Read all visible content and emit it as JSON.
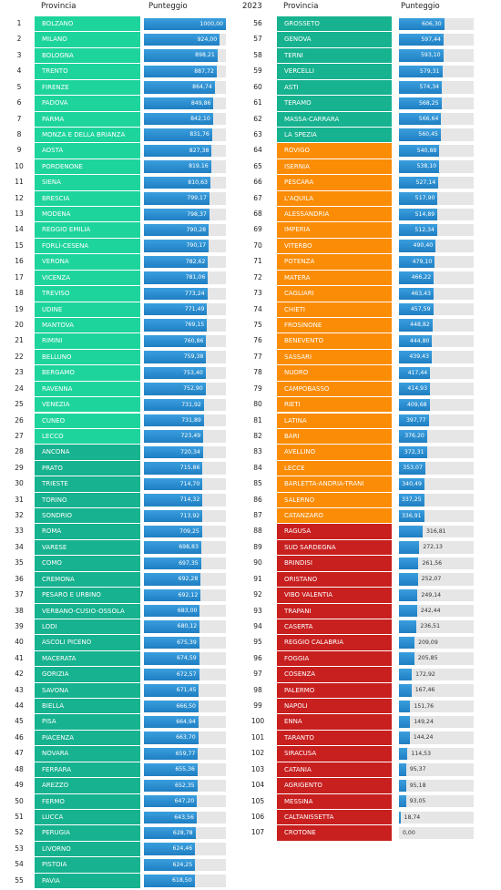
{
  "header": {
    "left_province": "Provincia",
    "left_score": "Punteggio",
    "year": "2023",
    "right_province": "Provincia",
    "right_score": "Punteggio"
  },
  "columns": [
    {
      "sections": [
        {
          "color": "#1ed49d",
          "label_position": "inside",
          "rows": [
            [
              "1",
              "BOLZANO",
              1000.0,
              "1000,00"
            ],
            [
              "2",
              "MILANO",
              924.0,
              "924,00"
            ],
            [
              "3",
              "BOLOGNA",
              898.21,
              "898,21"
            ],
            [
              "4",
              "TRENTO",
              887.72,
              "887,72"
            ],
            [
              "5",
              "FIRENZE",
              864.74,
              "864,74"
            ],
            [
              "6",
              "PADOVA",
              849.86,
              "849,86"
            ],
            [
              "7",
              "PARMA",
              842.1,
              "842,10"
            ],
            [
              "8",
              "MONZA E DELLA BRIANZA",
              831.76,
              "831,76"
            ],
            [
              "9",
              "AOSTA",
              827.38,
              "827,38"
            ],
            [
              "10",
              "PORDENONE",
              819.16,
              "819,16"
            ],
            [
              "11",
              "SIENA",
              810.63,
              "810,63"
            ],
            [
              "12",
              "BRESCIA",
              799.17,
              "799,17"
            ],
            [
              "13",
              "MODENA",
              798.37,
              "798,37"
            ],
            [
              "14",
              "REGGIO EMILIA",
              790.28,
              "790,28"
            ],
            [
              "15",
              "FORLÌ-CESENA",
              790.17,
              "790,17"
            ],
            [
              "16",
              "VERONA",
              782.62,
              "782,62"
            ],
            [
              "17",
              "VICENZA",
              781.06,
              "781,06"
            ],
            [
              "18",
              "TREVISO",
              773.24,
              "773,24"
            ],
            [
              "19",
              "UDINE",
              771.49,
              "771,49"
            ],
            [
              "20",
              "MANTOVA",
              769.15,
              "769,15"
            ],
            [
              "21",
              "RIMINI",
              760.86,
              "760,86"
            ],
            [
              "22",
              "BELLUNO",
              759.38,
              "759,38"
            ],
            [
              "23",
              "BERGAMO",
              753.4,
              "753,40"
            ],
            [
              "24",
              "RAVENNA",
              752.9,
              "752,90"
            ],
            [
              "25",
              "VENEZIA",
              731.92,
              "731,92"
            ],
            [
              "26",
              "CUNEO",
              731.89,
              "731,89"
            ],
            [
              "27",
              "LECCO",
              723.49,
              "723,49"
            ]
          ]
        },
        {
          "color": "#17b28f",
          "label_position": "inside",
          "rows": [
            [
              "28",
              "ANCONA",
              720.34,
              "720,34"
            ],
            [
              "29",
              "PRATO",
              715.86,
              "715,86"
            ],
            [
              "30",
              "TRIESTE",
              714.7,
              "714,70"
            ],
            [
              "31",
              "TORINO",
              714.32,
              "714,32"
            ],
            [
              "32",
              "SONDRIO",
              713.92,
              "713,92"
            ],
            [
              "33",
              "ROMA",
              709.25,
              "709,25"
            ],
            [
              "34",
              "VARESE",
              698.83,
              "698,83"
            ],
            [
              "35",
              "COMO",
              697.35,
              "697,35"
            ],
            [
              "36",
              "CREMONA",
              692.28,
              "692,28"
            ],
            [
              "37",
              "PESARO E URBINO",
              692.12,
              "692,12"
            ],
            [
              "38",
              "VERBANO-CUSIO-OSSOLA",
              683.0,
              "683,00"
            ],
            [
              "39",
              "LODI",
              680.12,
              "680,12"
            ],
            [
              "40",
              "ASCOLI PICENO",
              675.39,
              "675,39"
            ],
            [
              "41",
              "MACERATA",
              674.59,
              "674,59"
            ],
            [
              "42",
              "GORIZIA",
              672.57,
              "672,57"
            ],
            [
              "43",
              "SAVONA",
              671.45,
              "671,45"
            ],
            [
              "44",
              "BIELLA",
              666.5,
              "666,50"
            ],
            [
              "45",
              "PISA",
              664.94,
              "664,94"
            ],
            [
              "46",
              "PIACENZA",
              663.7,
              "663,70"
            ],
            [
              "47",
              "NOVARA",
              659.77,
              "659,77"
            ],
            [
              "48",
              "FERRARA",
              655.36,
              "655,36"
            ],
            [
              "49",
              "AREZZO",
              652.35,
              "652,35"
            ],
            [
              "50",
              "FERMO",
              647.2,
              "647,20"
            ],
            [
              "51",
              "LUCCA",
              643.56,
              "643,56"
            ],
            [
              "52",
              "PERUGIA",
              628.78,
              "628,78"
            ],
            [
              "53",
              "LIVORNO",
              624.46,
              "624,46"
            ],
            [
              "54",
              "PISTOIA",
              624.25,
              "624,25"
            ],
            [
              "55",
              "PAVIA",
              618.5,
              "618,50"
            ]
          ]
        }
      ]
    },
    {
      "sections": [
        {
          "color": "#17b28f",
          "label_position": "inside",
          "rows": [
            [
              "56",
              "GROSSETO",
              606.3,
              "606,30"
            ],
            [
              "57",
              "GENOVA",
              597.44,
              "597,44"
            ],
            [
              "58",
              "TERNI",
              593.1,
              "593,10"
            ],
            [
              "59",
              "VERCELLI",
              579.31,
              "579,31"
            ],
            [
              "60",
              "ASTI",
              574.34,
              "574,34"
            ],
            [
              "61",
              "TERAMO",
              568.25,
              "568,25"
            ],
            [
              "62",
              "MASSA-CARRARA",
              566.64,
              "566,64"
            ],
            [
              "63",
              "LA SPEZIA",
              560.45,
              "560,45"
            ]
          ]
        },
        {
          "color": "#fb8c06",
          "label_position": "inside",
          "rows": [
            [
              "64",
              "ROVIGO",
              540.88,
              "540,88"
            ],
            [
              "65",
              "ISERNIA",
              538.1,
              "538,10"
            ],
            [
              "66",
              "PESCARA",
              527.14,
              "527,14"
            ],
            [
              "67",
              "L'AQUILA",
              517.9,
              "517,90"
            ],
            [
              "68",
              "ALESSANDRIA",
              514.89,
              "514,89"
            ],
            [
              "69",
              "IMPERIA",
              512.34,
              "512,34"
            ],
            [
              "70",
              "VITERBO",
              490.4,
              "490,40"
            ],
            [
              "71",
              "POTENZA",
              479.1,
              "479,10"
            ],
            [
              "72",
              "MATERA",
              466.22,
              "466,22"
            ],
            [
              "73",
              "CAGLIARI",
              463.43,
              "463,43"
            ],
            [
              "74",
              "CHIETI",
              457.59,
              "457,59"
            ],
            [
              "75",
              "FROSINONE",
              448.82,
              "448,82"
            ],
            [
              "76",
              "BENEVENTO",
              444.8,
              "444,80"
            ],
            [
              "77",
              "SASSARI",
              439.43,
              "439,43"
            ],
            [
              "78",
              "NUORO",
              417.44,
              "417,44"
            ],
            [
              "79",
              "CAMPOBASSO",
              414.93,
              "414,93"
            ],
            [
              "80",
              "RIETI",
              409.68,
              "409,68"
            ],
            [
              "81",
              "LATINA",
              397.77,
              "397,77"
            ],
            [
              "82",
              "BARI",
              376.2,
              "376,20"
            ],
            [
              "83",
              "AVELLINO",
              372.31,
              "372,31"
            ],
            [
              "84",
              "LECCE",
              353.07,
              "353,07"
            ],
            [
              "85",
              "BARLETTA-ANDRIA-TRANI",
              340.49,
              "340,49"
            ],
            [
              "86",
              "SALERNO",
              337.25,
              "337,25"
            ],
            [
              "87",
              "CATANZARO",
              336.91,
              "336,91"
            ]
          ]
        },
        {
          "color": "#c81f1f",
          "label_position": "outside",
          "rows": [
            [
              "88",
              "RAGUSA",
              316.81,
              "316,81"
            ],
            [
              "89",
              "SUD SARDEGNA",
              272.13,
              "272,13"
            ],
            [
              "90",
              "BRINDISI",
              261.56,
              "261,56"
            ],
            [
              "91",
              "ORISTANO",
              252.07,
              "252,07"
            ],
            [
              "92",
              "VIBO VALENTIA",
              249.14,
              "249,14"
            ],
            [
              "93",
              "TRAPANI",
              242.44,
              "242,44"
            ],
            [
              "94",
              "CASERTA",
              236.51,
              "236,51"
            ],
            [
              "95",
              "REGGIO CALABRIA",
              209.09,
              "209,09"
            ],
            [
              "96",
              "FOGGIA",
              205.85,
              "205,85"
            ],
            [
              "97",
              "COSENZA",
              172.92,
              "172,92"
            ],
            [
              "98",
              "PALERMO",
              167.46,
              "167,46"
            ],
            [
              "99",
              "NAPOLI",
              151.76,
              "151,76"
            ],
            [
              "100",
              "ENNA",
              149.24,
              "149,24"
            ],
            [
              "101",
              "TARANTO",
              144.24,
              "144,24"
            ],
            [
              "102",
              "SIRACUSA",
              114.53,
              "114,53"
            ],
            [
              "103",
              "CATANIA",
              95.37,
              "95,37"
            ],
            [
              "104",
              "AGRIGENTO",
              95.18,
              "95,18"
            ],
            [
              "105",
              "MESSINA",
              93.05,
              "93,05"
            ],
            [
              "106",
              "CALTANISSETTA",
              18.74,
              "18,74"
            ],
            [
              "107",
              "CROTONE",
              0.0,
              "0,00"
            ]
          ]
        }
      ]
    }
  ]
}
